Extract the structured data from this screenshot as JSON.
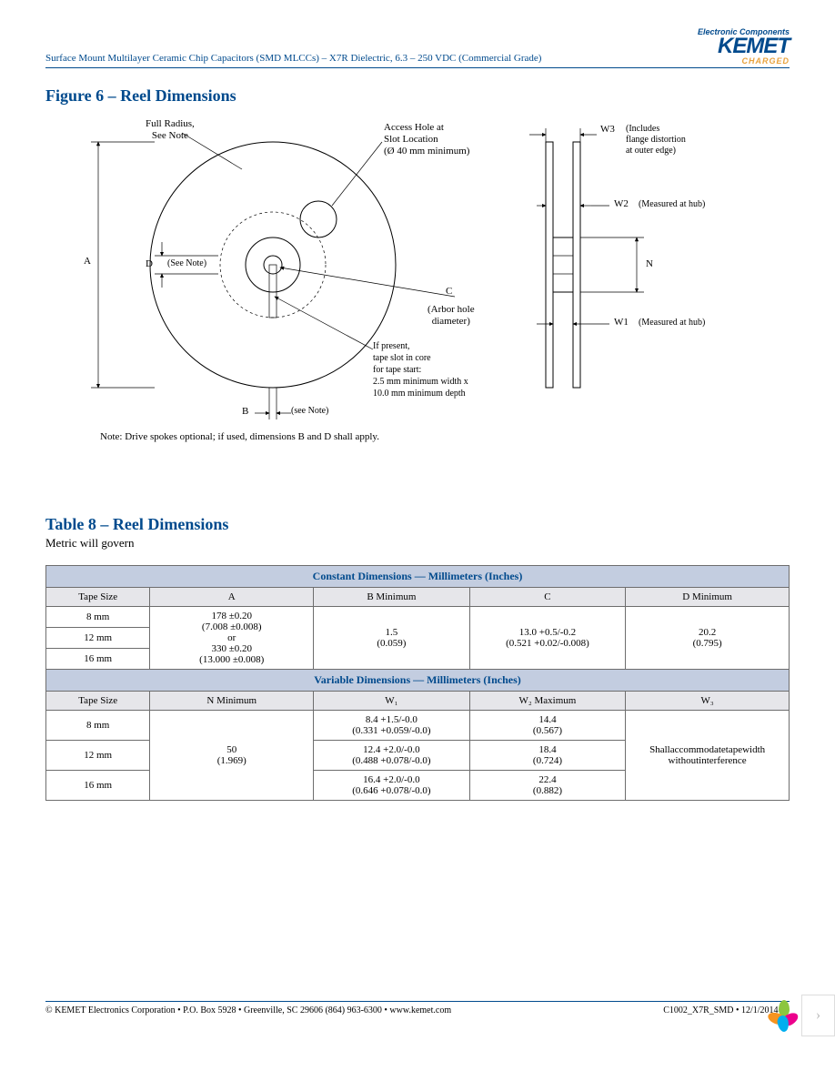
{
  "header": {
    "title": "Surface Mount Multilayer Ceramic Chip Capacitors (SMD MLCCs) – X7R Dielectric, 6.3 – 250 VDC (Commercial Grade)",
    "logo_top": "Electronic Components",
    "logo_main": "KEMET",
    "logo_sub": "CHARGED"
  },
  "figure": {
    "title": "Figure 6 – Reel Dimensions",
    "labels": {
      "full_radius": "Full Radius,\nSee Note",
      "access_hole": "Access Hole at\nSlot Location\n(Ø 40 mm minimum)",
      "w3": "W3",
      "w3_note": "(Includes\nflange distortion\nat outer edge)",
      "w2": "W2",
      "w2_note": "(Measured at hub)",
      "w1": "W1",
      "w1_note": "(Measured at hub)",
      "n": "N",
      "a": "A",
      "d": "D",
      "d_note": "(See Note)",
      "c": "C",
      "c_note": "(Arbor hole\ndiameter)",
      "b": "B",
      "b_note": "(see Note)",
      "tape_slot": "If present,\ntape slot in core\nfor tape start:\n2.5 mm minimum width x\n10.0 mm minimum depth",
      "note": "Note:  Drive spokes optional; if used, dimensions B and D shall apply."
    }
  },
  "table": {
    "title": "Table 8 – Reel Dimensions",
    "subtitle": "Metric will govern",
    "section1": "Constant Dimensions — Millimeters (Inches)",
    "section2": "Variable Dimensions — Millimeters (Inches)",
    "headers1": {
      "tape_size": "Tape Size",
      "a": "A",
      "b": "B Minimum",
      "c": "C",
      "d": "D Minimum"
    },
    "headers2": {
      "tape_size": "Tape Size",
      "n": "N Minimum",
      "w1": "W₁",
      "w2": "W₂ Maximum",
      "w3": "W₃"
    },
    "rows1": {
      "r1_size": "8 mm",
      "r2_size": "12 mm",
      "r3_size": "16 mm",
      "a_val": "178 ±0.20\n(7.008 ±0.008)\nor\n330 ±0.20\n(13.000 ±0.008)",
      "b_val": "1.5\n(0.059)",
      "c_val": "13.0 +0.5/-0.2\n(0.521 +0.02/-0.008)",
      "d_val": "20.2\n(0.795)"
    },
    "rows2": {
      "r1_size": "8 mm",
      "r2_size": "12 mm",
      "r3_size": "16 mm",
      "n_val": "50\n(1.969)",
      "w1_r1": "8.4 +1.5/-0.0\n(0.331 +0.059/-0.0)",
      "w1_r2": "12.4 +2.0/-0.0\n(0.488 +0.078/-0.0)",
      "w1_r3": "16.4 +2.0/-0.0\n(0.646 +0.078/-0.0)",
      "w2_r1": "14.4\n(0.567)",
      "w2_r2": "18.4\n(0.724)",
      "w2_r3": "22.4\n(0.882)",
      "w3_val": "Shallaccommodatetapewidth\nwithoutinterference"
    }
  },
  "footer": {
    "left": "© KEMET Electronics Corporation • P.O. Box 5928 • Greenville, SC 29606 (864) 963-6300 • www.kemet.com",
    "right": "C1002_X7R_SMD • 12/1/2014  21"
  }
}
